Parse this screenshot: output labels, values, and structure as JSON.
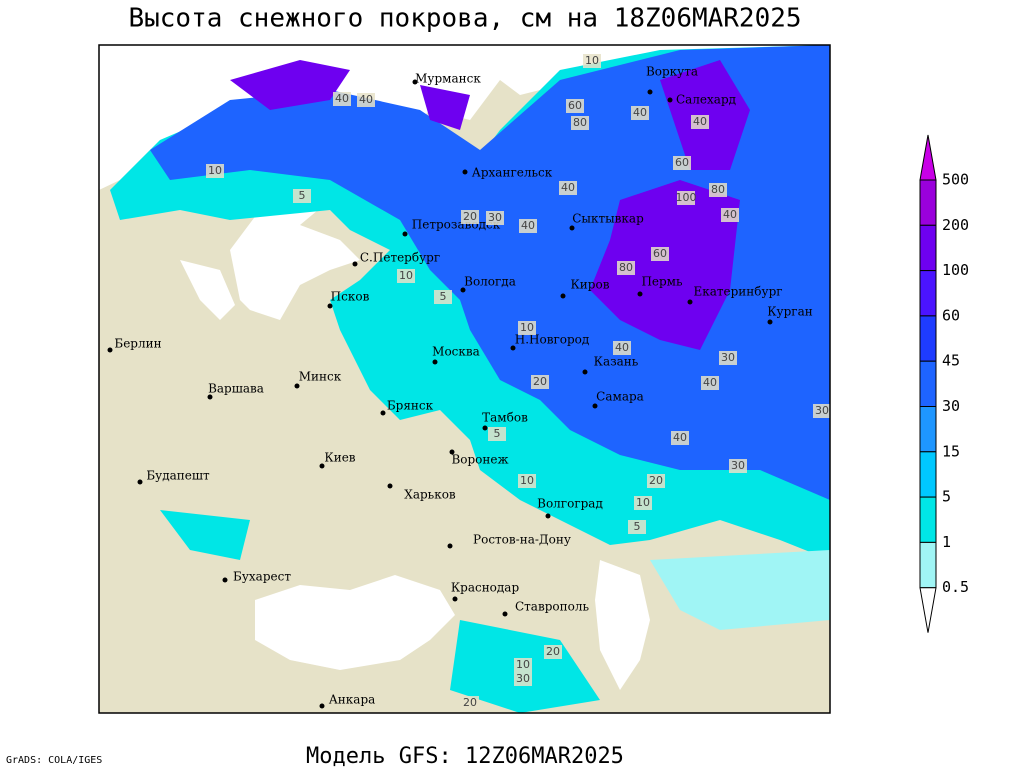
{
  "title": "Высота снежного покрова, см на 18Z06MAR2025",
  "footer": "Модель GFS: 12Z06MAR2025",
  "credit": "GrADS: COLA/IGES",
  "legend": {
    "levels": [
      500,
      200,
      100,
      60,
      45,
      30,
      15,
      5,
      1,
      0.5
    ],
    "colors": [
      "#c800e6",
      "#9a00dc",
      "#6e00f0",
      "#4b14ff",
      "#1e3cff",
      "#1e64ff",
      "#1e96ff",
      "#00c8ff",
      "#00e6e6",
      "#a0f5f5",
      "#ffffff"
    ]
  },
  "cities": [
    "Мурманск",
    "Воркута",
    "Салехард",
    "Архангельск",
    "Сыктывкар",
    "Петрозаводск",
    "С.Петербург",
    "Вологда",
    "Киров",
    "Пермь",
    "Екатеринбург",
    "Курган",
    "Псков",
    "Берлин",
    "Минск",
    "Москва",
    "Н.Новгород",
    "Казань",
    "Варшава",
    "Брянск",
    "Тамбов",
    "Самара",
    "Киев",
    "Воронеж",
    "Будапешт",
    "Харьков",
    "Волгоград",
    "Ростов-на-Дону",
    "Бухарест",
    "Краснодар",
    "Ставрополь",
    "Анкара"
  ],
  "contour_labels": [
    10,
    40,
    40,
    80,
    60,
    40,
    40,
    10,
    5,
    20,
    30,
    40,
    40,
    60,
    100,
    80,
    40,
    10,
    5,
    10,
    40,
    30,
    30,
    40,
    20,
    20,
    5,
    10,
    30,
    10,
    5,
    20,
    10,
    30,
    20,
    40,
    60,
    80
  ]
}
